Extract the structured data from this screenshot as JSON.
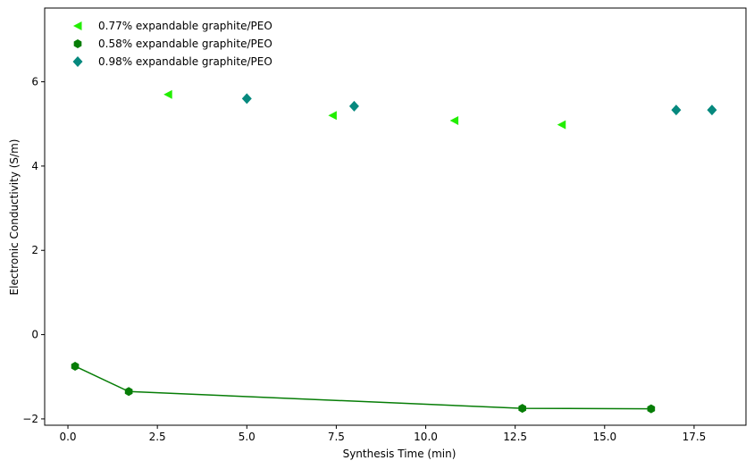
{
  "chart_data": {
    "type": "scatter",
    "xlabel": "Synthesis Time (min)",
    "ylabel": "Electronic Conductivity (S/m)",
    "xlim": [
      -0.65,
      18.95
    ],
    "ylim": [
      -2.15,
      7.75
    ],
    "xticks": [
      {
        "value": 0.0,
        "label": "0.0"
      },
      {
        "value": 2.5,
        "label": "2.5"
      },
      {
        "value": 5.0,
        "label": "5.0"
      },
      {
        "value": 7.5,
        "label": "7.5"
      },
      {
        "value": 10.0,
        "label": "10.0"
      },
      {
        "value": 12.5,
        "label": "12.5"
      },
      {
        "value": 15.0,
        "label": "15.0"
      },
      {
        "value": 17.5,
        "label": "17.5"
      }
    ],
    "yticks": [
      {
        "value": -2,
        "label": "−2"
      },
      {
        "value": 0,
        "label": "0"
      },
      {
        "value": 2,
        "label": "2"
      },
      {
        "value": 4,
        "label": "4"
      },
      {
        "value": 6,
        "label": "6"
      }
    ],
    "grid": false,
    "legend_position": "top-left",
    "series": [
      {
        "name": "0.77% expandable graphite/PEO",
        "marker": "triangle-left",
        "color": "#22ee00",
        "line": false,
        "x": [
          2.8,
          7.4,
          10.8,
          13.8
        ],
        "y": [
          5.7,
          5.2,
          5.08,
          4.98
        ]
      },
      {
        "name": "0.58% expandable graphite/PEO",
        "marker": "hexagon",
        "color": "#067d06",
        "line": true,
        "x": [
          0.2,
          1.7,
          12.7,
          16.3
        ],
        "y": [
          -0.75,
          -1.35,
          -1.75,
          -1.76
        ]
      },
      {
        "name": "0.98% expandable graphite/PEO",
        "marker": "diamond",
        "color": "#06897e",
        "line": false,
        "x": [
          5.0,
          8.0,
          17.0,
          18.0
        ],
        "y": [
          5.6,
          5.42,
          5.33,
          5.33
        ]
      }
    ]
  }
}
